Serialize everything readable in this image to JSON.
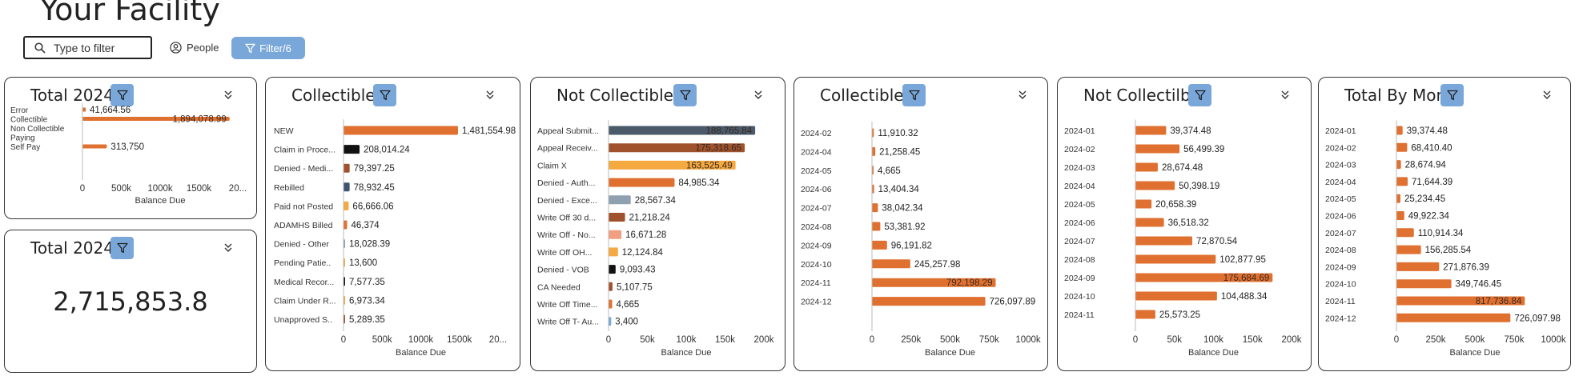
{
  "page": {
    "title": "Your Facility",
    "search_placeholder": "Type to filter",
    "people_label": "People",
    "filter_label": "Filter/6"
  },
  "colors": {
    "accent": "#7aa7d9",
    "bar": "#e07030"
  },
  "cards": [
    {
      "title": "Total 2024",
      "xlabel": "Balance Due",
      "ticks": [
        "0",
        "500k",
        "1000k",
        "1500k",
        "20..."
      ]
    },
    {
      "title": "Total 2024",
      "value": "2,715,853.8"
    },
    {
      "title": "Collectible",
      "xlabel": "Balance Due",
      "ticks": [
        "0",
        "500k",
        "1000k",
        "1500k",
        "20..."
      ]
    },
    {
      "title": "Not Collectible",
      "xlabel": "Balance Due",
      "ticks": [
        "0",
        "50k",
        "100k",
        "150k",
        "200k"
      ]
    },
    {
      "title": "Collectible",
      "xlabel": "Balance Due",
      "ticks": [
        "0",
        "250k",
        "500k",
        "750k",
        "1000k"
      ]
    },
    {
      "title": "Not Collectilbe",
      "xlabel": "Balance Due",
      "ticks": [
        "0",
        "50k",
        "100k",
        "150k",
        "200k"
      ]
    },
    {
      "title": "Total By Month",
      "xlabel": "Balance Due",
      "ticks": [
        "0",
        "250k",
        "500k",
        "750k",
        "1000k"
      ]
    }
  ],
  "chart_data": [
    {
      "type": "bar",
      "orientation": "horizontal",
      "title": "Total 2024",
      "xlabel": "Balance Due",
      "xlim": [
        0,
        2000000
      ],
      "categories": [
        "Error",
        "Collectible",
        "Non Collectible",
        "Paying",
        "Self Pay"
      ],
      "values": [
        null,
        1894078.99,
        null,
        null,
        313750
      ],
      "labels": [
        "",
        "1,894,078.99",
        "",
        "",
        "313,750"
      ],
      "extra_labels": [
        {
          "text": "41,664.56",
          "value": 41664.56
        }
      ],
      "colors": [
        "#e07030",
        "#e07030",
        "#e07030",
        "#e07030",
        "#e07030"
      ]
    },
    {
      "type": "bar",
      "orientation": "horizontal",
      "title": "Collectible",
      "xlabel": "Balance Due",
      "xlim": [
        0,
        2000000
      ],
      "categories": [
        "NEW",
        "Claim in Proce...",
        "Denied - Medi...",
        "Rebilled",
        "Paid not Posted",
        "ADAMHS Billed",
        "Denied - Other",
        "Pending Patie..",
        "Medical Recor...",
        "Claim Under R...",
        "Unapproved S.."
      ],
      "values": [
        1481554.98,
        208014.24,
        79397.25,
        78932.45,
        66666.06,
        46374,
        18028.39,
        13600,
        7577.35,
        6973.34,
        5289.35
      ],
      "labels": [
        "1,481,554.98",
        "208,014.24",
        "79,397.25",
        "78,932.45",
        "66,666.06",
        "46,374",
        "18,028.39",
        "13,600",
        "7,577.35",
        "6,973.34",
        "5,289.35"
      ],
      "colors": [
        "#e07030",
        "#111111",
        "#a0522d",
        "#3d5570",
        "#f4a941",
        "#e07030",
        "#8fa0b8",
        "#f4a941",
        "#111111",
        "#f4a941",
        "#a0522d"
      ]
    },
    {
      "type": "bar",
      "orientation": "horizontal",
      "title": "Not Collectible",
      "xlabel": "Balance Due",
      "xlim": [
        0,
        200000
      ],
      "categories": [
        "Appeal Submit...",
        "Appeal Receiv...",
        "Claim X",
        "Denied - Auth...",
        "Denied - Exce...",
        "Write Off 30 d...",
        "Write Off - No...",
        "Write Off OH...",
        "Denied - VOB",
        "CA Needed",
        "Write Off Time...",
        "Write Off T- Au..."
      ],
      "values": [
        188765.84,
        175318.65,
        163525.49,
        84985.34,
        28567.34,
        21218.24,
        16671.28,
        12124.84,
        9093.43,
        5107.75,
        4665,
        3400
      ],
      "labels": [
        "188,765.84",
        "175,318.65",
        "163,525.49",
        "84,985.34",
        "28,567.34",
        "21,218.24",
        "16,671.28",
        "12,124.84",
        "9,093.43",
        "5,107.75",
        "4,665",
        "3,400"
      ],
      "colors": [
        "#4a5a6a",
        "#a0522d",
        "#f4a941",
        "#e07030",
        "#8fa0b0",
        "#a0522d",
        "#f0a080",
        "#f4a941",
        "#111111",
        "#a0522d",
        "#e07030",
        "#7aa7d9"
      ]
    },
    {
      "type": "bar",
      "orientation": "horizontal",
      "title": "Collectible",
      "xlabel": "Balance Due",
      "xlim": [
        0,
        1000000
      ],
      "categories": [
        "2024-02",
        "2024-04",
        "2024-05",
        "2024-06",
        "2024-07",
        "2024-08",
        "2024-09",
        "2024-10",
        "2024-11",
        "2024-12"
      ],
      "values": [
        11910.32,
        21258.45,
        4665,
        13404.34,
        38042.34,
        53381.92,
        96191.82,
        245257.98,
        792198.29,
        726097.89
      ],
      "labels": [
        "11,910.32",
        "21,258.45",
        "4,665",
        "13,404.34",
        "38,042.34",
        "53,381.92",
        "96,191.82",
        "245,257.98",
        "792,198.29",
        "726,097.89"
      ]
    },
    {
      "type": "bar",
      "orientation": "horizontal",
      "title": "Not Collectilbe",
      "xlabel": "Balance Due",
      "xlim": [
        0,
        200000
      ],
      "categories": [
        "2024-01",
        "2024-02",
        "2024-03",
        "2024-04",
        "2024-05",
        "2024-06",
        "2024-07",
        "2024-08",
        "2024-09",
        "2024-10",
        "2024-11"
      ],
      "values": [
        39374.48,
        56499.39,
        28674.48,
        50398.19,
        20658.39,
        36518.32,
        72870.54,
        102877.95,
        175684.69,
        104488.34,
        25573.25
      ],
      "labels": [
        "39,374.48",
        "56,499.39",
        "28,674.48",
        "50,398.19",
        "20,658.39",
        "36,518.32",
        "72,870.54",
        "102,877.95",
        "175,684.69",
        "104,488.34",
        "25,573.25"
      ]
    },
    {
      "type": "bar",
      "orientation": "horizontal",
      "title": "Total By Month",
      "xlabel": "Balance Due",
      "xlim": [
        0,
        1000000
      ],
      "categories": [
        "2024-01",
        "2024-02",
        "2024-03",
        "2024-04",
        "2024-05",
        "2024-06",
        "2024-07",
        "2024-08",
        "2024-09",
        "2024-10",
        "2024-11",
        "2024-12"
      ],
      "values": [
        39374.48,
        68410.4,
        28674.94,
        71644.39,
        25234.45,
        49922.34,
        110914.34,
        156285.54,
        271876.39,
        349746.45,
        817736.84,
        726097.98
      ],
      "labels": [
        "39,374.48",
        "68,410.40",
        "28,674.94",
        "71,644.39",
        "25,234.45",
        "49,922.34",
        "110,914.34",
        "156,285.54",
        "271,876.39",
        "349,746.45",
        "817,736.84",
        "726,097.98"
      ]
    }
  ]
}
